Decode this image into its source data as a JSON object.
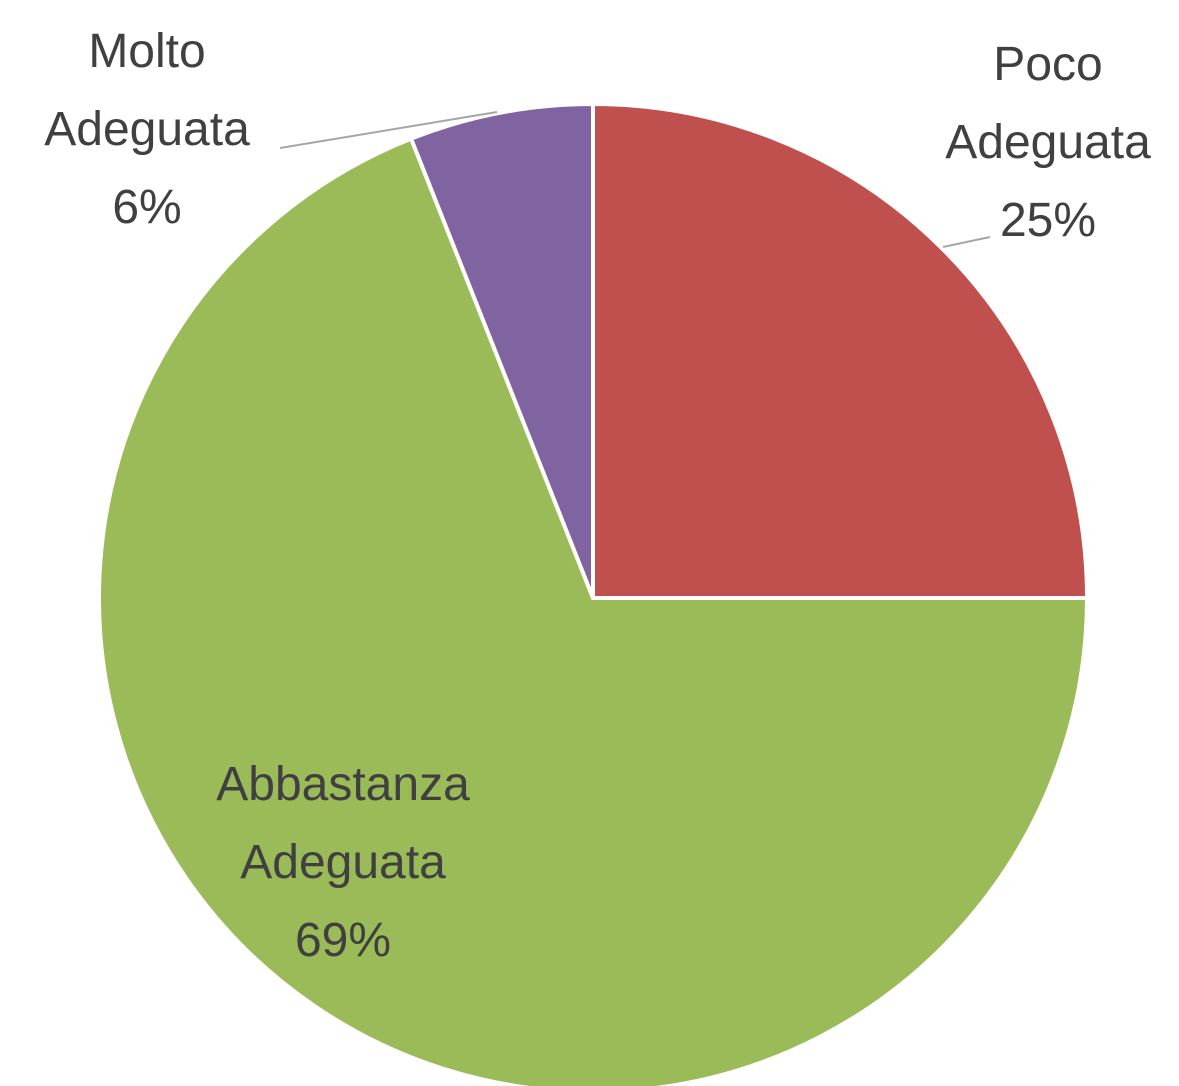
{
  "chart_data": {
    "type": "pie",
    "categories": [
      "Poco Adeguata",
      "Abbastanza Adeguata",
      "Molto Adeguata"
    ],
    "values": [
      25,
      69,
      6
    ],
    "value_labels": [
      "25%",
      "69%",
      "6%"
    ],
    "colors": [
      "#c0504d",
      "#9bbb59",
      "#8064a2"
    ]
  }
}
